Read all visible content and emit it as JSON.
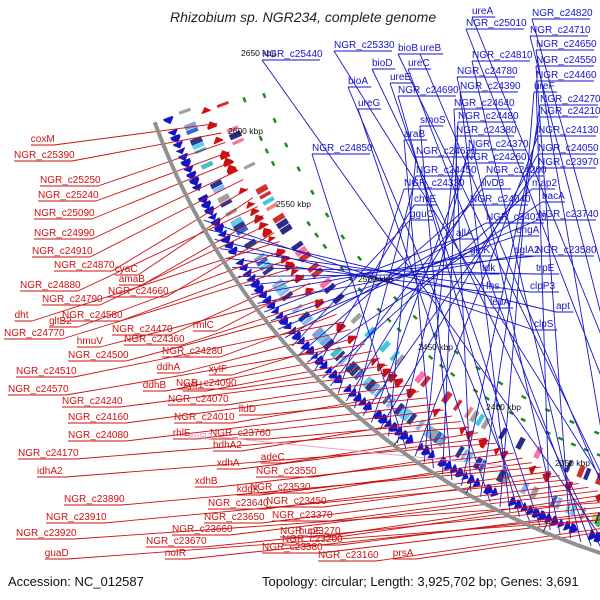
{
  "title": "Rhizobium sp. NGR234, complete genome",
  "accession": "Accession: NC_012587",
  "summary": "Topology: circular; Length: 3,925,702 bp; Genes: 3,691",
  "colors": {
    "forward": "#1515c8",
    "reverse": "#cc1111",
    "rna": "#e2a0c4",
    "backbone": "#909090",
    "tick": "#1e8a1e"
  },
  "kbp_ticks": [
    "2650 kbp",
    "2600 kbp",
    "2550 kbp",
    "2500 kbp",
    "2450 kbp",
    "2400 kbp",
    "2350 kbp"
  ],
  "forward_genes": [
    "ureA",
    "NGR_c24820",
    "NGR_c25010",
    "NGR_c24710",
    "NGR_c25330",
    "bioB",
    "ureB",
    "NGR_c24650",
    "NGR_c25440",
    "bioD",
    "ureC",
    "NGR_c24810",
    "NGR_c24550",
    "NGR_c24780",
    "NGR_c24460",
    "ureE",
    "bioA",
    "NGR_c24690",
    "NGR_c24390",
    "ureF",
    "ureG",
    "NGR_c24270",
    "NGR_c24640",
    "NGR_c24210",
    "smoS",
    "NGR_c24480",
    "araB",
    "NGR_c24380",
    "NGR_c24130",
    "NGR_c24850",
    "NGR_c24370",
    "NGR_c24630",
    "NGR_c24050",
    "NGR_c24260",
    "NGR_c23970",
    "NGR_c24450",
    "NGR_c24200",
    "NGR_c24330",
    "ilvD3",
    "map2",
    "chvE",
    "bacA",
    "NGR_c24040",
    "gguC",
    "NGR_c24020",
    "NGR_c23740",
    "engA",
    "allA",
    "aglA2",
    "glpK",
    "NGR_c23580",
    "tdk",
    "trpE",
    "fhs",
    "clpP3",
    "leuA",
    "apt",
    "clpS"
  ],
  "reverse_genes": [
    "coxM",
    "NGR_c25390",
    "NGR_c25250",
    "NGR_c25240",
    "NGR_c25090",
    "NGR_c24990",
    "NGR_c24910",
    "NGR_c24870",
    "cyaC",
    "NGR_c24880",
    "amaB",
    "NGR_c24790",
    "NGR_c24660",
    "dht",
    "gltB2",
    "NGR_c24580",
    "NGR_c24770",
    "NGR_c24470",
    "rmlC",
    "hmuV",
    "NGR_c24360",
    "NGR_c24500",
    "NGR_c24280",
    "NGR_c24510",
    "ddhA",
    "xylF",
    "NGR_c24570",
    "ddhB",
    "xylH",
    "NGR_c24090",
    "NGR_c24240",
    "NGR_c24070",
    "NGR_c24160",
    "NGR_c24010",
    "lldD",
    "NGR_c24080",
    "rhlE",
    "bdhA2",
    "NGR_c23760",
    "NGR_c24170",
    "adeC",
    "xdhA",
    "idhA2",
    "NGR_c23550",
    "xdhB",
    "NGR_c23530",
    "kdgK",
    "NGR_c23890",
    "NGR_c23640",
    "NGR_c23450",
    "NGR_c23910",
    "NGR_c23650",
    "NGR_c23370",
    "NGR_c23660",
    "hupE",
    "NGR_c23270",
    "NGR_c23920",
    "NGR_c23670",
    "NGR_c23200",
    "noIR",
    "NGR_c23380",
    "guaD",
    "NGR_c23160",
    "prsA"
  ],
  "rna_genes": [
    "trnR3"
  ]
}
